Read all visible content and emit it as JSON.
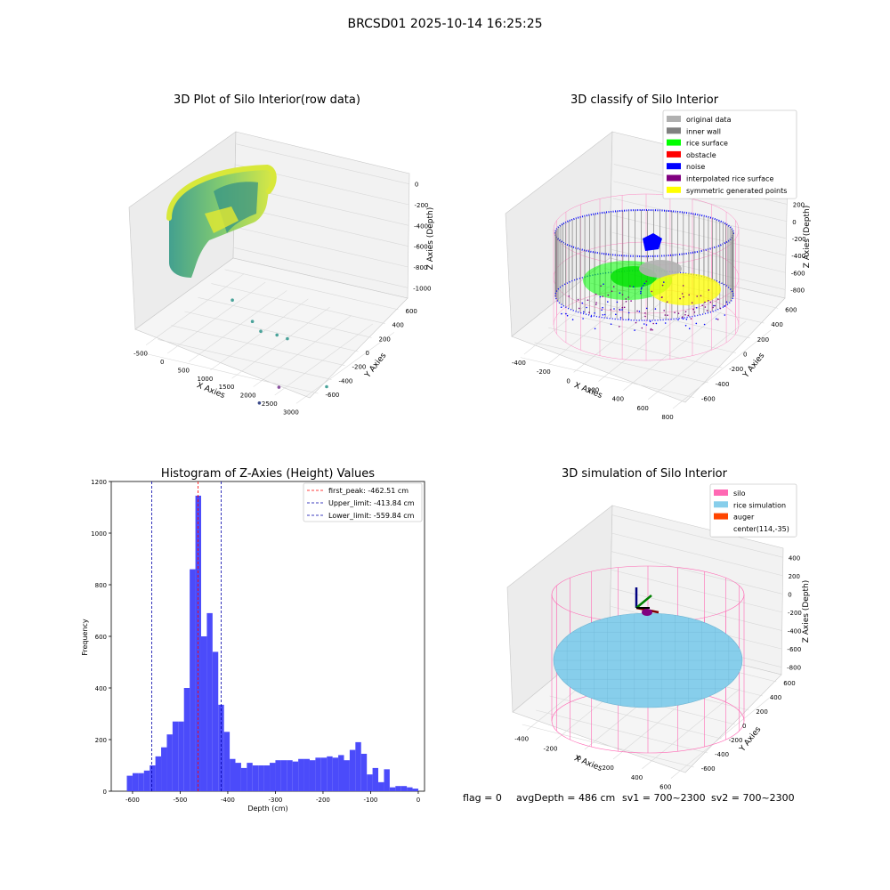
{
  "figure": {
    "suptitle": "BRCSD01 2025-10-14 16:25:25",
    "footer": {
      "flag": "flag = 0",
      "avg": "avgDepth = 486 cm",
      "sv1": "sv1 = 700~2300",
      "sv2": "sv2 = 700~2300"
    }
  },
  "colors": {
    "hist_bar": "#4b4bfa",
    "peak_line": "#ff0000",
    "limit_line": "#0000aa",
    "silo": "#ff69b4",
    "rice": "#87ceeb",
    "auger": "#ff4500",
    "wall": "#808080",
    "rice_surface": "#00ff00",
    "noise": "#0000ff",
    "interp": "#800080",
    "sym": "#ffff00",
    "original": "#b0b0b0"
  },
  "chart_data": [
    {
      "type": "scatter3d",
      "title": "3D Plot of Silo Interior(row data)",
      "xlabel": "X Axies",
      "ylabel": "Y Axies",
      "zlabel": "Z Axies (Depth)",
      "xticks": [
        "-500",
        "0",
        "500",
        "1000",
        "1500",
        "2000",
        "2500",
        "3000"
      ],
      "yticks": [
        "-600",
        "-400",
        "-200",
        "0",
        "200",
        "400",
        "600"
      ],
      "zticks": [
        "0",
        "-200",
        "-400",
        "-600",
        "-800",
        "-1000"
      ],
      "outliers": [
        {
          "x": 600,
          "y": -100,
          "z": -500
        },
        {
          "x": 1100,
          "y": -150,
          "z": -600
        },
        {
          "x": 1350,
          "y": -200,
          "z": -620
        },
        {
          "x": 1550,
          "y": -100,
          "z": -700
        },
        {
          "x": 1700,
          "y": -50,
          "z": -750
        },
        {
          "x": 2900,
          "y": -300,
          "z": -850
        },
        {
          "x": 2100,
          "y": -450,
          "z": -900
        },
        {
          "x": 1900,
          "y": -600,
          "z": -1000
        }
      ]
    },
    {
      "type": "scatter3d",
      "title": "3D classify of Silo Interior",
      "xlabel": "X Axies",
      "ylabel": "Y Axies",
      "zlabel": "Z Axies (Depth)",
      "xticks": [
        "-400",
        "-200",
        "0",
        "200",
        "400",
        "600",
        "800"
      ],
      "yticks": [
        "-600",
        "-400",
        "-200",
        "0",
        "200",
        "400",
        "600"
      ],
      "zticks": [
        "200",
        "0",
        "-200",
        "-400",
        "-600",
        "-800"
      ],
      "legend": [
        {
          "label": "original data",
          "color": "#b0b0b0"
        },
        {
          "label": "inner wall",
          "color": "#808080"
        },
        {
          "label": "rice surface",
          "color": "#00ff00"
        },
        {
          "label": "obstacle",
          "color": "#ff0000"
        },
        {
          "label": "noise",
          "color": "#0000ff"
        },
        {
          "label": "interpolated rice surface",
          "color": "#800080"
        },
        {
          "label": "symmetric generated points",
          "color": "#ffff00"
        }
      ]
    },
    {
      "type": "bar",
      "title": "Histogram of Z-Axies (Height) Values",
      "xlabel": "Depth (cm)",
      "ylabel": "Frequency",
      "xlim": [
        -625,
        0
      ],
      "ylim": [
        0,
        1200
      ],
      "xticks": [
        -600,
        -500,
        -400,
        -300,
        -200,
        -100,
        0
      ],
      "yticks": [
        0,
        200,
        400,
        600,
        800,
        1000,
        1200
      ],
      "bin_width": 12,
      "bin_start": -612,
      "values": [
        60,
        70,
        70,
        80,
        100,
        135,
        170,
        220,
        270,
        270,
        400,
        860,
        1145,
        600,
        690,
        540,
        335,
        230,
        125,
        110,
        90,
        110,
        100,
        100,
        100,
        110,
        120,
        120,
        120,
        115,
        125,
        125,
        120,
        130,
        130,
        135,
        130,
        140,
        120,
        160,
        190,
        145,
        65,
        90,
        35,
        85,
        15,
        20,
        20,
        15,
        10
      ],
      "lines": [
        {
          "label": "first_peak: -462.51 cm",
          "x": -462.51,
          "color": "#ff0000"
        },
        {
          "label": "Upper_limit: -413.84 cm",
          "x": -413.84,
          "color": "#0000aa"
        },
        {
          "label": "Lower_limit: -559.84 cm",
          "x": -559.84,
          "color": "#0000aa"
        }
      ]
    },
    {
      "type": "surface3d",
      "title": "3D simulation of Silo Interior",
      "xlabel": "X Axies",
      "ylabel": "Y Axies",
      "zlabel": "Z Axies (Depth)",
      "xticks": [
        "-400",
        "-200",
        "0",
        "200",
        "400",
        "600"
      ],
      "yticks": [
        "-600",
        "-400",
        "-200",
        "0",
        "200",
        "400",
        "600"
      ],
      "zticks": [
        "400",
        "200",
        "0",
        "-200",
        "-400",
        "-600",
        "-800"
      ],
      "legend": [
        {
          "label": "silo",
          "color": "#ff69b4"
        },
        {
          "label": "rice simulation",
          "color": "#87ceeb"
        },
        {
          "label": "auger",
          "color": "#ff4500"
        },
        {
          "label": "center(114,-35)",
          "color": ""
        }
      ]
    }
  ]
}
